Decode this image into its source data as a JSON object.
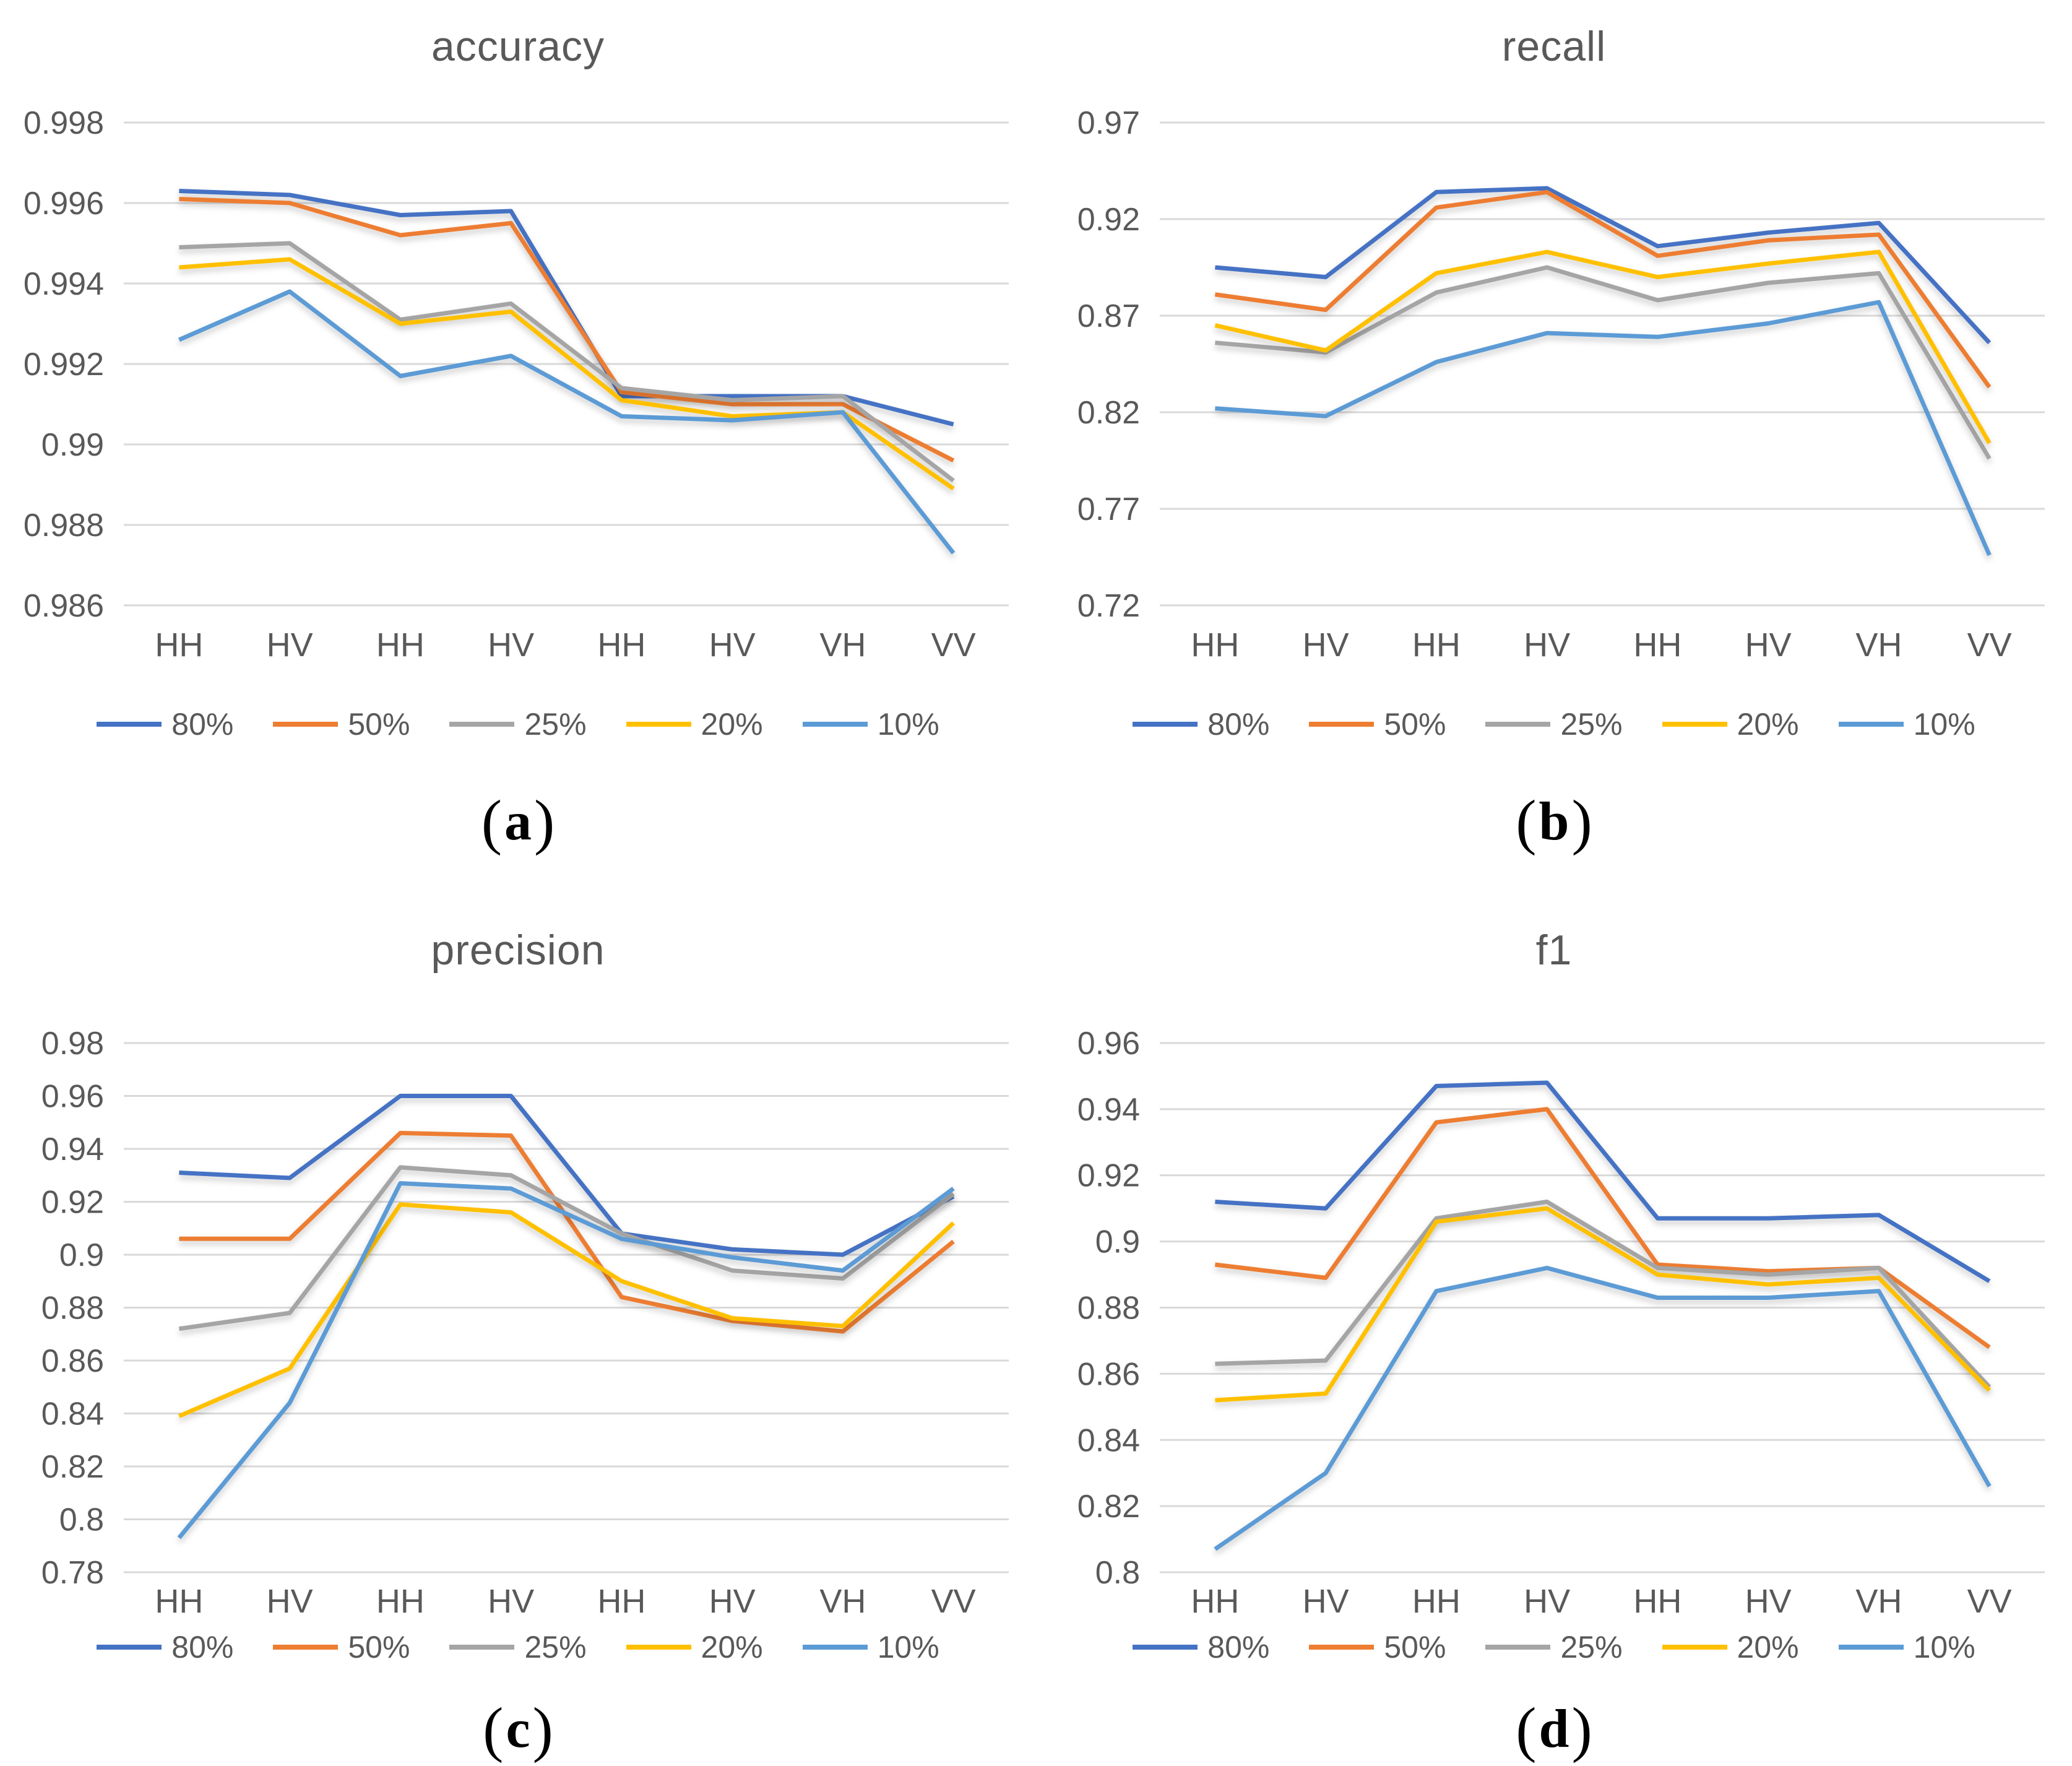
{
  "figure": {
    "background": "#FFFFFF"
  },
  "text_color": "#595959",
  "grid_color": "#D9D9D9",
  "caption_color": "#000000",
  "categories": [
    "HH",
    "HV",
    "HH",
    "HV",
    "HH",
    "HV",
    "VH",
    "VV"
  ],
  "legend_labels": [
    "80%",
    "50%",
    "25%",
    "20%",
    "10%"
  ],
  "palette": {
    "80%": "#4472C4",
    "50%": "#ED7D31",
    "25%": "#A5A5A5",
    "20%": "#FFC000",
    "10%": "#5B9BD5"
  },
  "chart_data": [
    {
      "type": "line",
      "title": "accuracy",
      "caption_open": "(",
      "caption_letter": "a",
      "caption_close": ")",
      "xlabel": "",
      "ylabel": "",
      "grid": true,
      "legend_position": "bottom",
      "ylim": [
        0.986,
        0.998
      ],
      "ytick_values": [
        0.998,
        0.996,
        0.994,
        0.992,
        0.99,
        0.988,
        0.986
      ],
      "ytick_labels": [
        "0.998",
        "0.996",
        "0.994",
        "0.992",
        "0.99",
        "0.988",
        "0.986"
      ],
      "series": [
        {
          "name": "80%",
          "color": "#4472C4",
          "values": [
            0.9963,
            0.9962,
            0.9957,
            0.9958,
            0.9912,
            0.9912,
            0.9912,
            0.9905
          ]
        },
        {
          "name": "50%",
          "color": "#ED7D31",
          "values": [
            0.9961,
            0.996,
            0.9952,
            0.9955,
            0.9913,
            0.991,
            0.991,
            0.9896
          ]
        },
        {
          "name": "25%",
          "color": "#A5A5A5",
          "values": [
            0.9949,
            0.995,
            0.9931,
            0.9935,
            0.9914,
            0.9911,
            0.9912,
            0.9891
          ]
        },
        {
          "name": "20%",
          "color": "#FFC000",
          "values": [
            0.9944,
            0.9946,
            0.993,
            0.9933,
            0.9911,
            0.9907,
            0.9908,
            0.9889
          ]
        },
        {
          "name": "10%",
          "color": "#5B9BD5",
          "values": [
            0.9926,
            0.9938,
            0.9917,
            0.9922,
            0.9907,
            0.9906,
            0.9908,
            0.9873
          ]
        }
      ]
    },
    {
      "type": "line",
      "title": "recall",
      "caption_open": "(",
      "caption_letter": "b",
      "caption_close": ")",
      "xlabel": "",
      "ylabel": "",
      "grid": true,
      "legend_position": "bottom",
      "ylim": [
        0.72,
        0.97
      ],
      "ytick_values": [
        0.97,
        0.92,
        0.87,
        0.82,
        0.77,
        0.72
      ],
      "ytick_labels": [
        "0.97",
        "0.92",
        "0.87",
        "0.82",
        "0.77",
        "0.72"
      ],
      "series": [
        {
          "name": "80%",
          "color": "#4472C4",
          "values": [
            0.895,
            0.89,
            0.934,
            0.936,
            0.906,
            0.913,
            0.918,
            0.856
          ]
        },
        {
          "name": "50%",
          "color": "#ED7D31",
          "values": [
            0.881,
            0.873,
            0.926,
            0.934,
            0.901,
            0.909,
            0.912,
            0.833
          ]
        },
        {
          "name": "25%",
          "color": "#A5A5A5",
          "values": [
            0.856,
            0.851,
            0.882,
            0.895,
            0.878,
            0.887,
            0.892,
            0.796
          ]
        },
        {
          "name": "20%",
          "color": "#FFC000",
          "values": [
            0.865,
            0.852,
            0.892,
            0.903,
            0.89,
            0.897,
            0.903,
            0.804
          ]
        },
        {
          "name": "10%",
          "color": "#5B9BD5",
          "values": [
            0.822,
            0.818,
            0.846,
            0.861,
            0.859,
            0.866,
            0.877,
            0.746
          ]
        }
      ]
    },
    {
      "type": "line",
      "title": "precision",
      "caption_open": "(",
      "caption_letter": "c",
      "caption_close": ")",
      "xlabel": "",
      "ylabel": "",
      "grid": true,
      "legend_position": "bottom",
      "ylim": [
        0.78,
        0.98
      ],
      "ytick_values": [
        0.98,
        0.96,
        0.94,
        0.92,
        0.9,
        0.88,
        0.86,
        0.84,
        0.82,
        0.8,
        0.78
      ],
      "ytick_labels": [
        "0.98",
        "0.96",
        "0.94",
        "0.92",
        "0.9",
        "0.88",
        "0.86",
        "0.84",
        "0.82",
        "0.8",
        "0.78"
      ],
      "series": [
        {
          "name": "80%",
          "color": "#4472C4",
          "values": [
            0.931,
            0.929,
            0.96,
            0.96,
            0.908,
            0.902,
            0.9,
            0.922
          ]
        },
        {
          "name": "50%",
          "color": "#ED7D31",
          "values": [
            0.906,
            0.906,
            0.946,
            0.945,
            0.884,
            0.875,
            0.871,
            0.905
          ]
        },
        {
          "name": "25%",
          "color": "#A5A5A5",
          "values": [
            0.872,
            0.878,
            0.933,
            0.93,
            0.908,
            0.894,
            0.891,
            0.923
          ]
        },
        {
          "name": "20%",
          "color": "#FFC000",
          "values": [
            0.839,
            0.857,
            0.919,
            0.916,
            0.89,
            0.876,
            0.873,
            0.912
          ]
        },
        {
          "name": "10%",
          "color": "#5B9BD5",
          "values": [
            0.793,
            0.844,
            0.927,
            0.925,
            0.906,
            0.899,
            0.894,
            0.925
          ]
        }
      ]
    },
    {
      "type": "line",
      "title": "f1",
      "caption_open": "(",
      "caption_letter": "d",
      "caption_close": ")",
      "xlabel": "",
      "ylabel": "",
      "grid": true,
      "legend_position": "bottom",
      "ylim": [
        0.8,
        0.96
      ],
      "ytick_values": [
        0.96,
        0.94,
        0.92,
        0.9,
        0.88,
        0.86,
        0.84,
        0.82,
        0.8
      ],
      "ytick_labels": [
        "0.96",
        "0.94",
        "0.92",
        "0.9",
        "0.88",
        "0.86",
        "0.84",
        "0.82",
        "0.8"
      ],
      "series": [
        {
          "name": "80%",
          "color": "#4472C4",
          "values": [
            0.912,
            0.91,
            0.947,
            0.948,
            0.907,
            0.907,
            0.908,
            0.888
          ]
        },
        {
          "name": "50%",
          "color": "#ED7D31",
          "values": [
            0.893,
            0.889,
            0.936,
            0.94,
            0.893,
            0.891,
            0.892,
            0.868
          ]
        },
        {
          "name": "25%",
          "color": "#A5A5A5",
          "values": [
            0.863,
            0.864,
            0.907,
            0.912,
            0.892,
            0.89,
            0.892,
            0.856
          ]
        },
        {
          "name": "20%",
          "color": "#FFC000",
          "values": [
            0.852,
            0.854,
            0.906,
            0.91,
            0.89,
            0.887,
            0.889,
            0.855
          ]
        },
        {
          "name": "10%",
          "color": "#5B9BD5",
          "values": [
            0.807,
            0.83,
            0.885,
            0.892,
            0.883,
            0.883,
            0.885,
            0.826
          ]
        }
      ]
    }
  ]
}
